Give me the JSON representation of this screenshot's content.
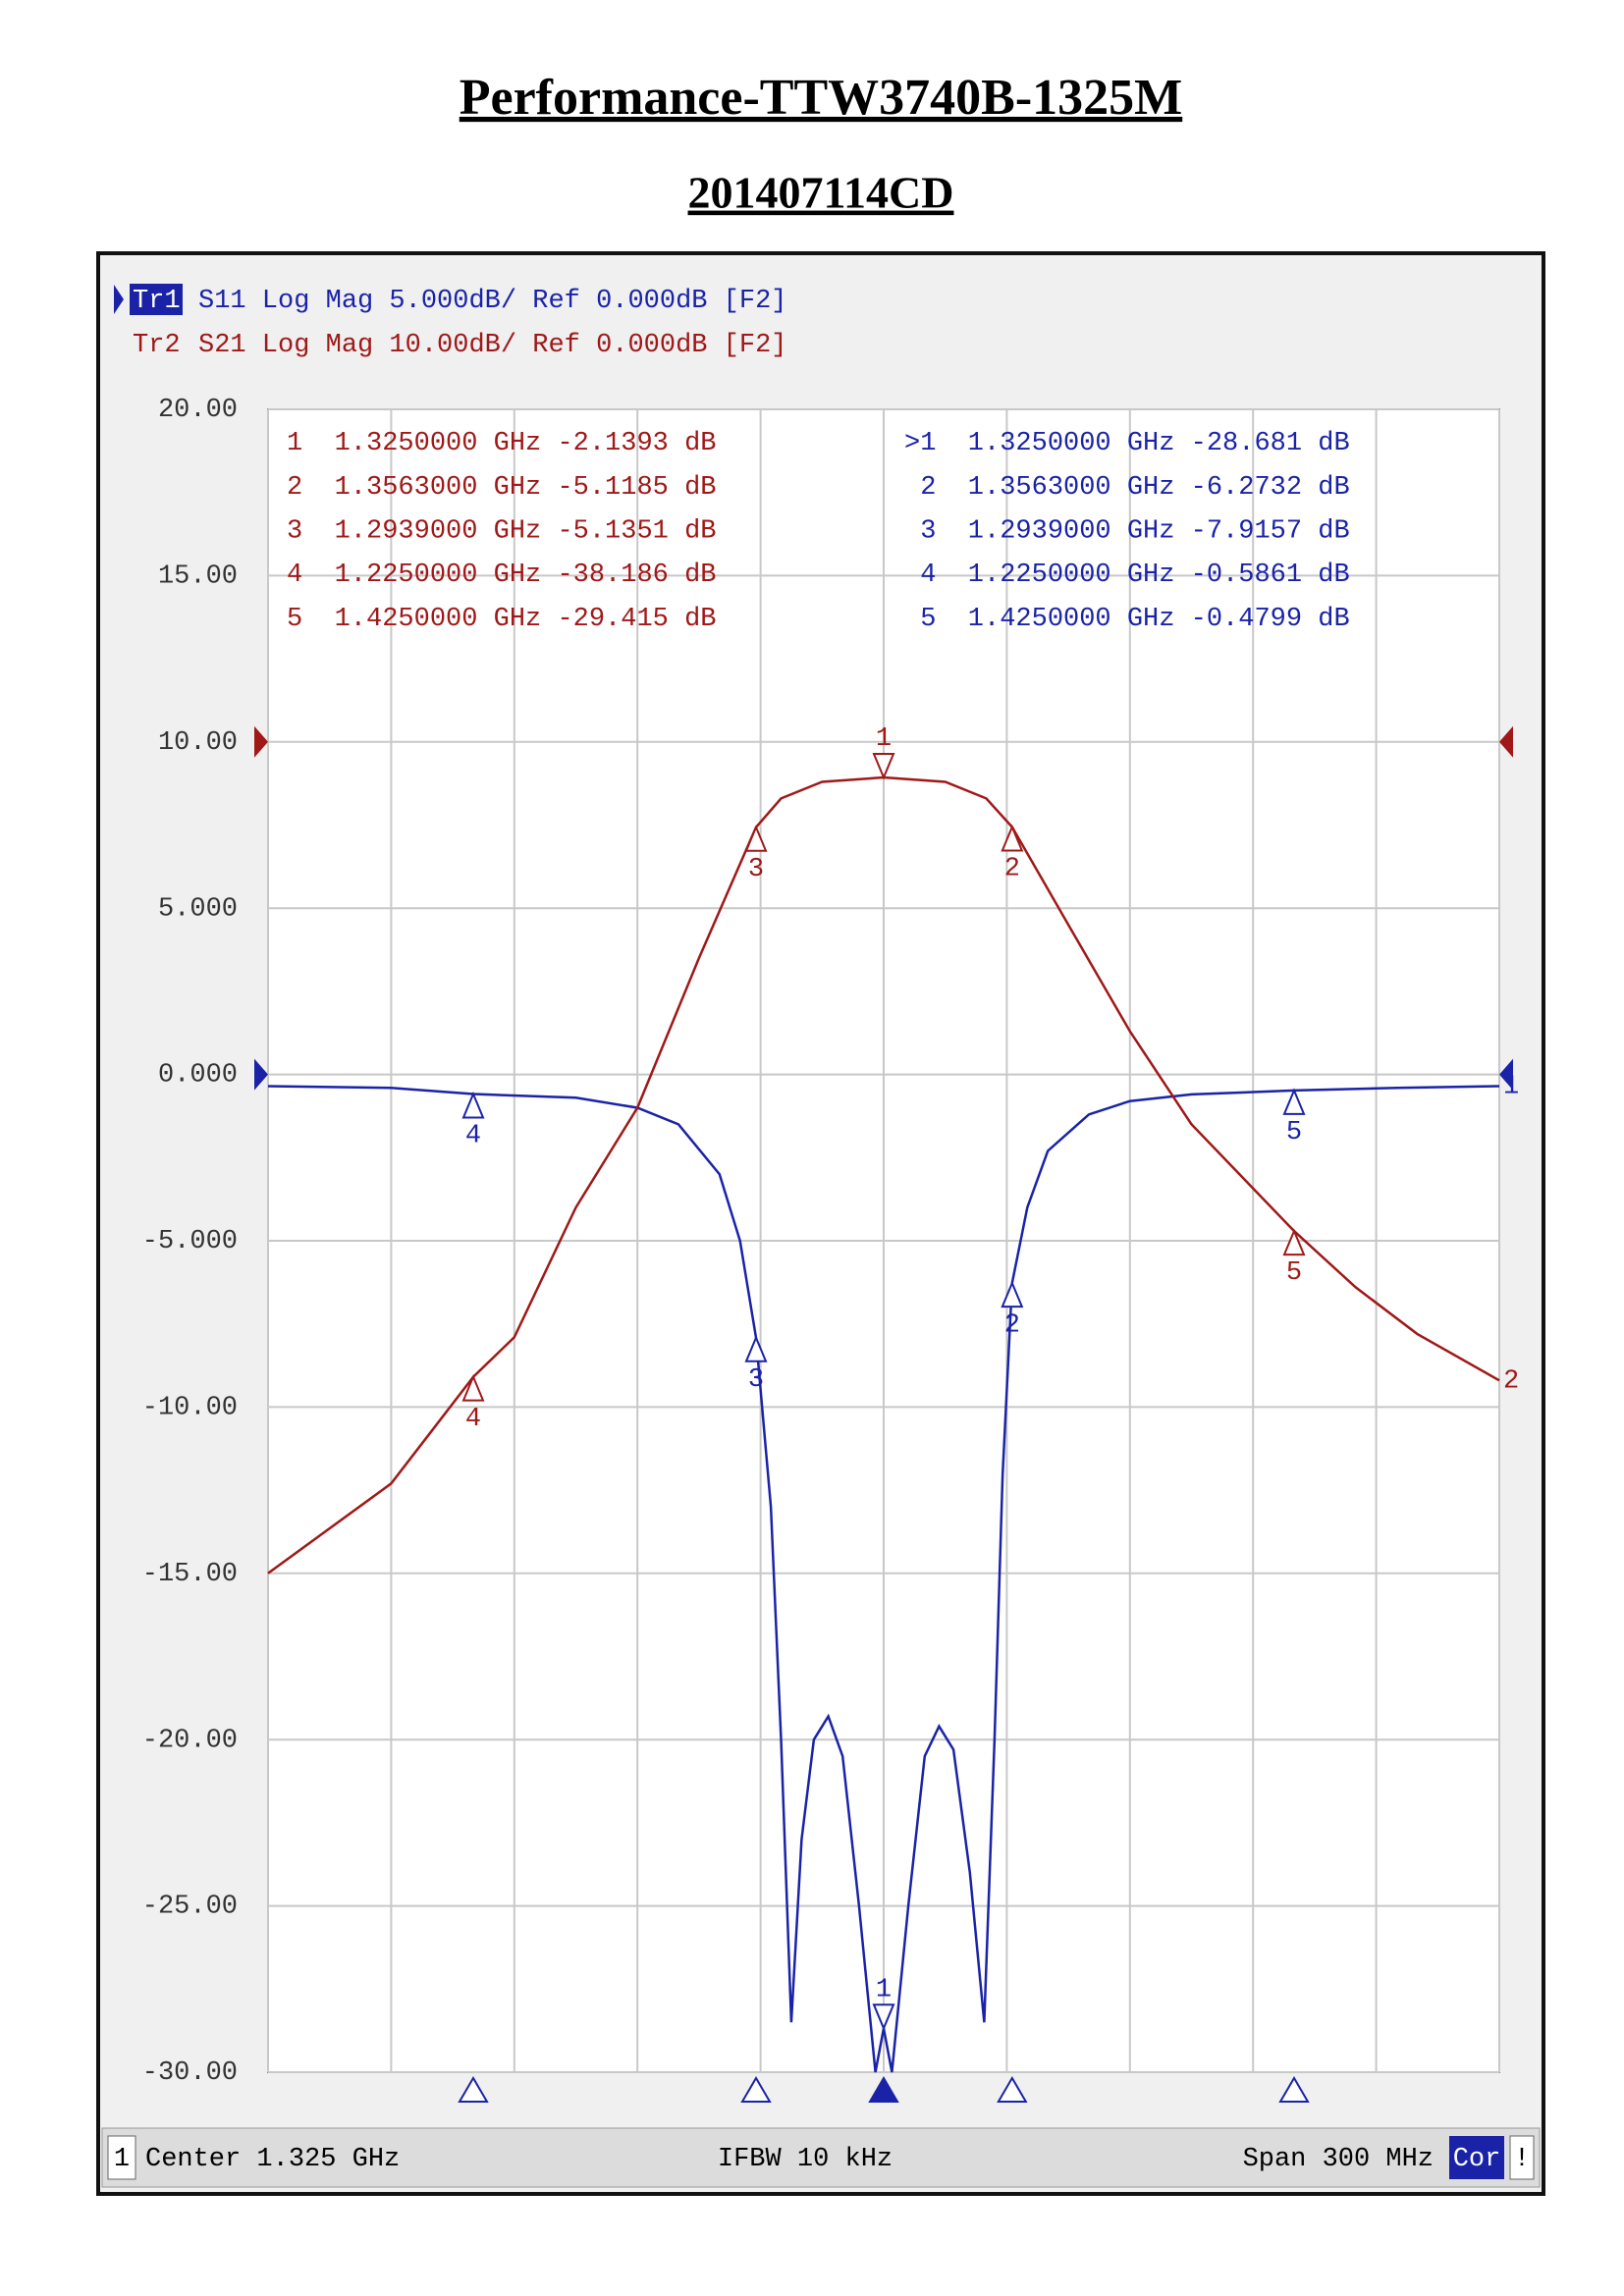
{
  "title": "Performance-TTW3740B-1325M",
  "subtitle": "201407114CD",
  "chart_data": {
    "type": "line",
    "xlim": [
      1.175,
      1.475
    ],
    "xticks": [
      1.175,
      1.205,
      1.235,
      1.265,
      1.295,
      1.325,
      1.355,
      1.385,
      1.415,
      1.445,
      1.475
    ],
    "ylim": [
      -30,
      20
    ],
    "yticks": [
      {
        "value": 20,
        "label": "20.00"
      },
      {
        "value": 15,
        "label": "15.00"
      },
      {
        "value": 10,
        "label": "10.00"
      },
      {
        "value": 5,
        "label": "5.000"
      },
      {
        "value": 0,
        "label": "0.000"
      },
      {
        "value": -5,
        "label": "-5.000"
      },
      {
        "value": -10,
        "label": "-10.00"
      },
      {
        "value": -15,
        "label": "-15.00"
      },
      {
        "value": -20,
        "label": "-20.00"
      },
      {
        "value": -25,
        "label": "-25.00"
      },
      {
        "value": -30,
        "label": "-30.00"
      }
    ],
    "y2lim": [
      -80,
      20
    ],
    "grid": true,
    "series": [
      {
        "name": "Tr1",
        "header": "S11 Log Mag 5.000dB/ Ref 0.000dB [F2]",
        "color": "#1a23a8",
        "end_label": "1",
        "x": [
          1.175,
          1.205,
          1.225,
          1.25,
          1.265,
          1.275,
          1.285,
          1.29,
          1.2939,
          1.2975,
          1.3,
          1.3025,
          1.305,
          1.308,
          1.3115,
          1.315,
          1.319,
          1.323,
          1.325,
          1.327,
          1.331,
          1.335,
          1.3385,
          1.342,
          1.346,
          1.3495,
          1.352,
          1.354,
          1.3563,
          1.36,
          1.365,
          1.375,
          1.385,
          1.4,
          1.425,
          1.45,
          1.475
        ],
        "values": [
          -0.35,
          -0.4,
          -0.5861,
          -0.7,
          -1.0,
          -1.5,
          -3.0,
          -5.0,
          -7.9157,
          -13,
          -20,
          -28.5,
          -23,
          -20,
          -19.3,
          -20.5,
          -25,
          -30,
          -28.681,
          -30,
          -25,
          -20.5,
          -19.6,
          -20.3,
          -24,
          -28.5,
          -20,
          -12,
          -6.2732,
          -4,
          -2.3,
          -1.2,
          -0.8,
          -0.6,
          -0.4799,
          -0.4,
          -0.35
        ],
        "marker_names": [
          "1",
          "2",
          "3",
          "4",
          "5"
        ],
        "marker_x": [
          1.325,
          1.3563,
          1.2939,
          1.225,
          1.425
        ],
        "marker_values": [
          -28.681,
          -6.2732,
          -7.9157,
          -0.5861,
          -0.4799
        ],
        "marker_readouts": [
          ">1  1.3250000 GHz -28.681 dB",
          " 2  1.3563000 GHz -6.2732 dB",
          " 3  1.2939000 GHz -7.9157 dB",
          " 4  1.2250000 GHz -0.5861 dB",
          " 5  1.4250000 GHz -0.4799 dB"
        ]
      },
      {
        "name": "Tr2",
        "header": "S21 Log Mag 10.00dB/ Ref 0.000dB [F2]",
        "color": "#a01818",
        "axis": "y2",
        "end_label": "2",
        "x": [
          1.175,
          1.205,
          1.225,
          1.235,
          1.25,
          1.265,
          1.28,
          1.2939,
          1.3,
          1.31,
          1.325,
          1.34,
          1.35,
          1.3563,
          1.37,
          1.385,
          1.4,
          1.425,
          1.44,
          1.455,
          1.475
        ],
        "values": [
          -50,
          -44.6,
          -38.186,
          -35.8,
          -28,
          -22,
          -13,
          -5.1351,
          -3.4,
          -2.4,
          -2.1393,
          -2.4,
          -3.4,
          -5.1185,
          -11,
          -17.4,
          -23,
          -29.415,
          -32.8,
          -35.6,
          -38.4
        ],
        "marker_names": [
          "1",
          "2",
          "3",
          "4",
          "5"
        ],
        "marker_x": [
          1.325,
          1.3563,
          1.2939,
          1.225,
          1.425
        ],
        "marker_values": [
          -2.1393,
          -5.1185,
          -5.1351,
          -38.186,
          -29.415
        ],
        "marker_readouts": [
          "1  1.3250000 GHz -2.1393 dB",
          "2  1.3563000 GHz -5.1185 dB",
          "3  1.2939000 GHz -5.1351 dB",
          "4  1.2250000 GHz -38.186 dB",
          "5  1.4250000 GHz -29.415 dB"
        ]
      }
    ],
    "footer": {
      "channel": "1",
      "center": "Center 1.325 GHz",
      "ifbw": "IFBW 10 kHz",
      "span": "Span 300 MHz",
      "cor": "Cor",
      "flag": "!"
    }
  }
}
